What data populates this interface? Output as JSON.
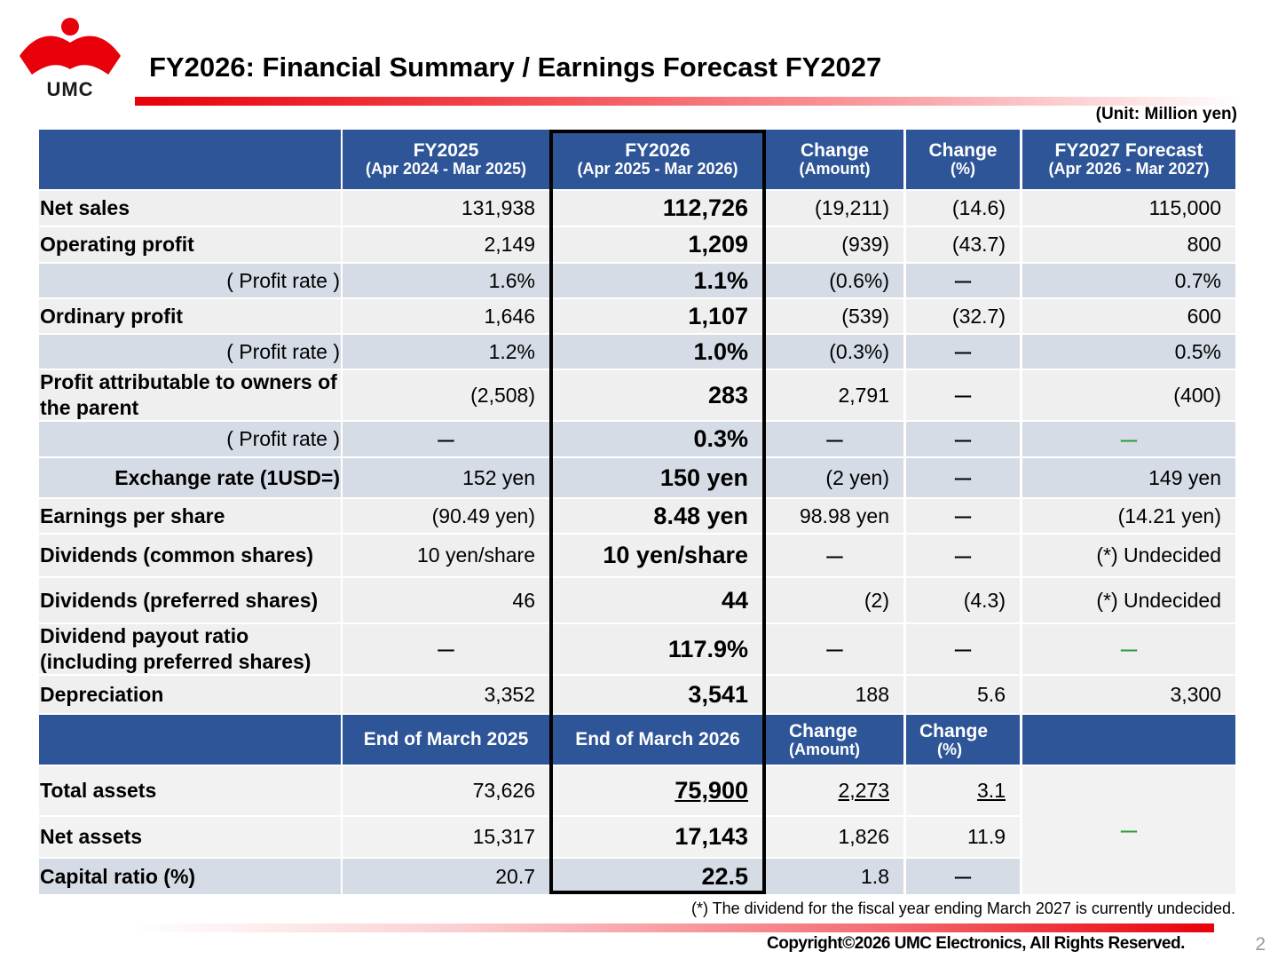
{
  "header": {
    "logo_text": "UMC",
    "title": "FY2026: Financial Summary  / Earnings Forecast FY2027",
    "unit": "(Unit: Million yen)"
  },
  "colors": {
    "header_blue": "#2e5597",
    "brand_red": "#e8000a",
    "dash_green": "#2a9a3a"
  },
  "income_columns": [
    {
      "line1": "FY2025",
      "line2": "(Apr 2024 - Mar 2025)"
    },
    {
      "line1": "FY2026",
      "line2": "(Apr 2025 - Mar 2026)"
    },
    {
      "line1": "Change",
      "line2": "(Amount)"
    },
    {
      "line1": "Change",
      "line2": "(%)"
    },
    {
      "line1": "FY2027 Forecast",
      "line2": "(Apr 2026 - Mar 2027)"
    }
  ],
  "income_rows": [
    {
      "label": "Net sales",
      "values": [
        "131,938",
        "112,726",
        "(19,211)",
        "(14.6)",
        "115,000"
      ]
    },
    {
      "label": "Operating profit",
      "values": [
        "2,149",
        "1,209",
        "(939)",
        "(43.7)",
        "800"
      ]
    },
    {
      "label": "( Profit rate )",
      "values": [
        "1.6%",
        "1.1%",
        "(0.6%)",
        "ー",
        "0.7%"
      ]
    },
    {
      "label": "Ordinary profit",
      "values": [
        "1,646",
        "1,107",
        "(539)",
        "(32.7)",
        "600"
      ]
    },
    {
      "label": "( Profit rate )",
      "values": [
        "1.2%",
        "1.0%",
        "(0.3%)",
        "ー",
        "0.5%"
      ]
    },
    {
      "label": "Profit attributable to owners of the parent",
      "values": [
        "(2,508)",
        "283",
        "2,791",
        "ー",
        "(400)"
      ]
    },
    {
      "label": "( Profit rate )",
      "values": [
        "ー",
        "0.3%",
        "ー",
        "ー",
        "ー"
      ]
    },
    {
      "label": "Exchange rate (1USD=)",
      "values": [
        "152 yen",
        "150 yen",
        "(2 yen)",
        "ー",
        "149 yen"
      ]
    },
    {
      "label": "Earnings per share",
      "values": [
        "(90.49 yen)",
        "8.48 yen",
        "98.98 yen",
        "ー",
        "(14.21 yen)"
      ]
    },
    {
      "label": "Dividends (common shares)",
      "values": [
        "10 yen/share",
        "10 yen/share",
        "ー",
        "ー",
        "(*) Undecided"
      ]
    },
    {
      "label": "Dividends (preferred shares)",
      "values": [
        "46",
        "44",
        "(2)",
        "(4.3)",
        "(*) Undecided"
      ]
    },
    {
      "label": "Dividend payout ratio (including preferred shares)",
      "values": [
        "ー",
        "117.9%",
        "ー",
        "ー",
        "ー"
      ]
    },
    {
      "label": "Depreciation",
      "values": [
        "3,352",
        "3,541",
        "188",
        "5.6",
        "3,300"
      ]
    }
  ],
  "balance_columns": [
    {
      "line1": "End of March 2025"
    },
    {
      "line1": "End of March 2026"
    },
    {
      "line1": "Change",
      "line2": "(Amount)"
    },
    {
      "line1": "Change",
      "line2": "(%)"
    }
  ],
  "balance_rows": [
    {
      "label": "Total assets",
      "values": [
        "73,626",
        "75,900",
        "2,273",
        "3.1"
      ]
    },
    {
      "label": "Net assets",
      "values": [
        "15,317",
        "17,143",
        "1,826",
        "11.9"
      ]
    },
    {
      "label": "Capital ratio (%)",
      "values": [
        "20.7",
        "22.5",
        "1.8",
        "ー"
      ]
    }
  ],
  "balance_forecast": "ー",
  "footnote": "(*) The dividend for the fiscal year ending March 2027 is currently undecided.",
  "copyright": "Copyright©2026 UMC Electronics, All Rights Reserved.",
  "page_number": "2"
}
